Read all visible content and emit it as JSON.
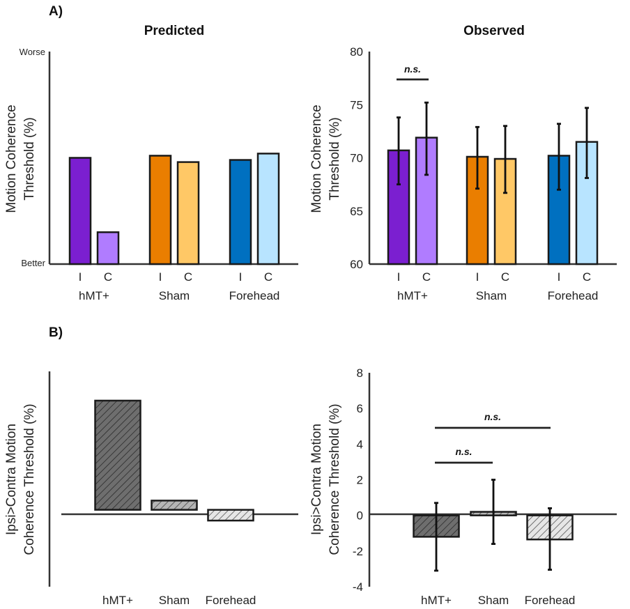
{
  "panel_labels": {
    "a": "A)",
    "b": "B)"
  },
  "colors": {
    "hmt_i": "#7B1FD0",
    "hmt_c": "#B07CFF",
    "sham_i": "#EA7E00",
    "sham_c": "#FFC866",
    "fh_i": "#0070C0",
    "fh_c": "#B8E4FF",
    "diff_hmt": "#6E6E6E",
    "diff_sham": "#B5B5B5",
    "diff_fh": "#E0E0E0"
  },
  "chart_data": [
    {
      "id": "predicted",
      "type": "bar",
      "title": "Predicted",
      "ylabel_lines": [
        "Motion Coherence",
        "Threshold (%)"
      ],
      "y_text_labels": {
        "top": "Worse",
        "bottom": "Better"
      },
      "ylim": [
        0,
        100
      ],
      "groups": [
        "hMT+",
        "Sham",
        "Forehead"
      ],
      "subcategories": [
        "I",
        "C"
      ],
      "values": [
        [
          50,
          15
        ],
        [
          51,
          48
        ],
        [
          49,
          52
        ]
      ]
    },
    {
      "id": "observed",
      "type": "bar",
      "title": "Observed",
      "ylabel_lines": [
        "Motion Coherence",
        "Threshold (%)"
      ],
      "ylim": [
        60,
        80
      ],
      "yticks": [
        "60",
        "65",
        "70",
        "75",
        "80"
      ],
      "groups": [
        "hMT+",
        "Sham",
        "Forehead"
      ],
      "subcategories": [
        "I",
        "C"
      ],
      "values": [
        [
          70.7,
          71.9
        ],
        [
          70.1,
          69.9
        ],
        [
          70.2,
          71.5
        ]
      ],
      "errors": [
        [
          [
            67.5,
            73.8
          ],
          [
            68.4,
            75.2
          ]
        ],
        [
          [
            67.1,
            72.9
          ],
          [
            66.7,
            73.0
          ]
        ],
        [
          [
            67.0,
            73.2
          ],
          [
            68.1,
            74.7
          ]
        ]
      ],
      "annotations": [
        {
          "text": "n.s.",
          "between": [
            "hMT+ I",
            "hMT+ C"
          ]
        }
      ]
    },
    {
      "id": "predicted_diff",
      "type": "bar",
      "title": "",
      "ylabel_lines": [
        "Ipsi>Contra Motion",
        "Coherence Threshold (%)"
      ],
      "ylim": [
        -5,
        9
      ],
      "categories": [
        "hMT+",
        "Sham",
        "Forehead"
      ],
      "values": [
        7.1,
        0.6,
        -0.7
      ]
    },
    {
      "id": "observed_diff",
      "type": "bar",
      "title": "",
      "ylabel_lines": [
        "Ipsi>Contra Motion",
        "Coherence Threshold (%)"
      ],
      "ylim": [
        -4,
        8
      ],
      "yticks": [
        "-4",
        "-2",
        "0",
        "2",
        "4",
        "6",
        "8"
      ],
      "categories": [
        "hMT+",
        "Sham",
        "Forehead"
      ],
      "values": [
        -1.2,
        0.2,
        -1.35
      ],
      "errors": [
        [
          -3.1,
          0.7
        ],
        [
          -1.6,
          2.0
        ],
        [
          -3.05,
          0.4
        ]
      ],
      "annotations": [
        {
          "text": "n.s.",
          "between": [
            "hMT+",
            "Sham"
          ]
        },
        {
          "text": "n.s.",
          "between": [
            "hMT+",
            "Forehead"
          ]
        }
      ]
    }
  ]
}
